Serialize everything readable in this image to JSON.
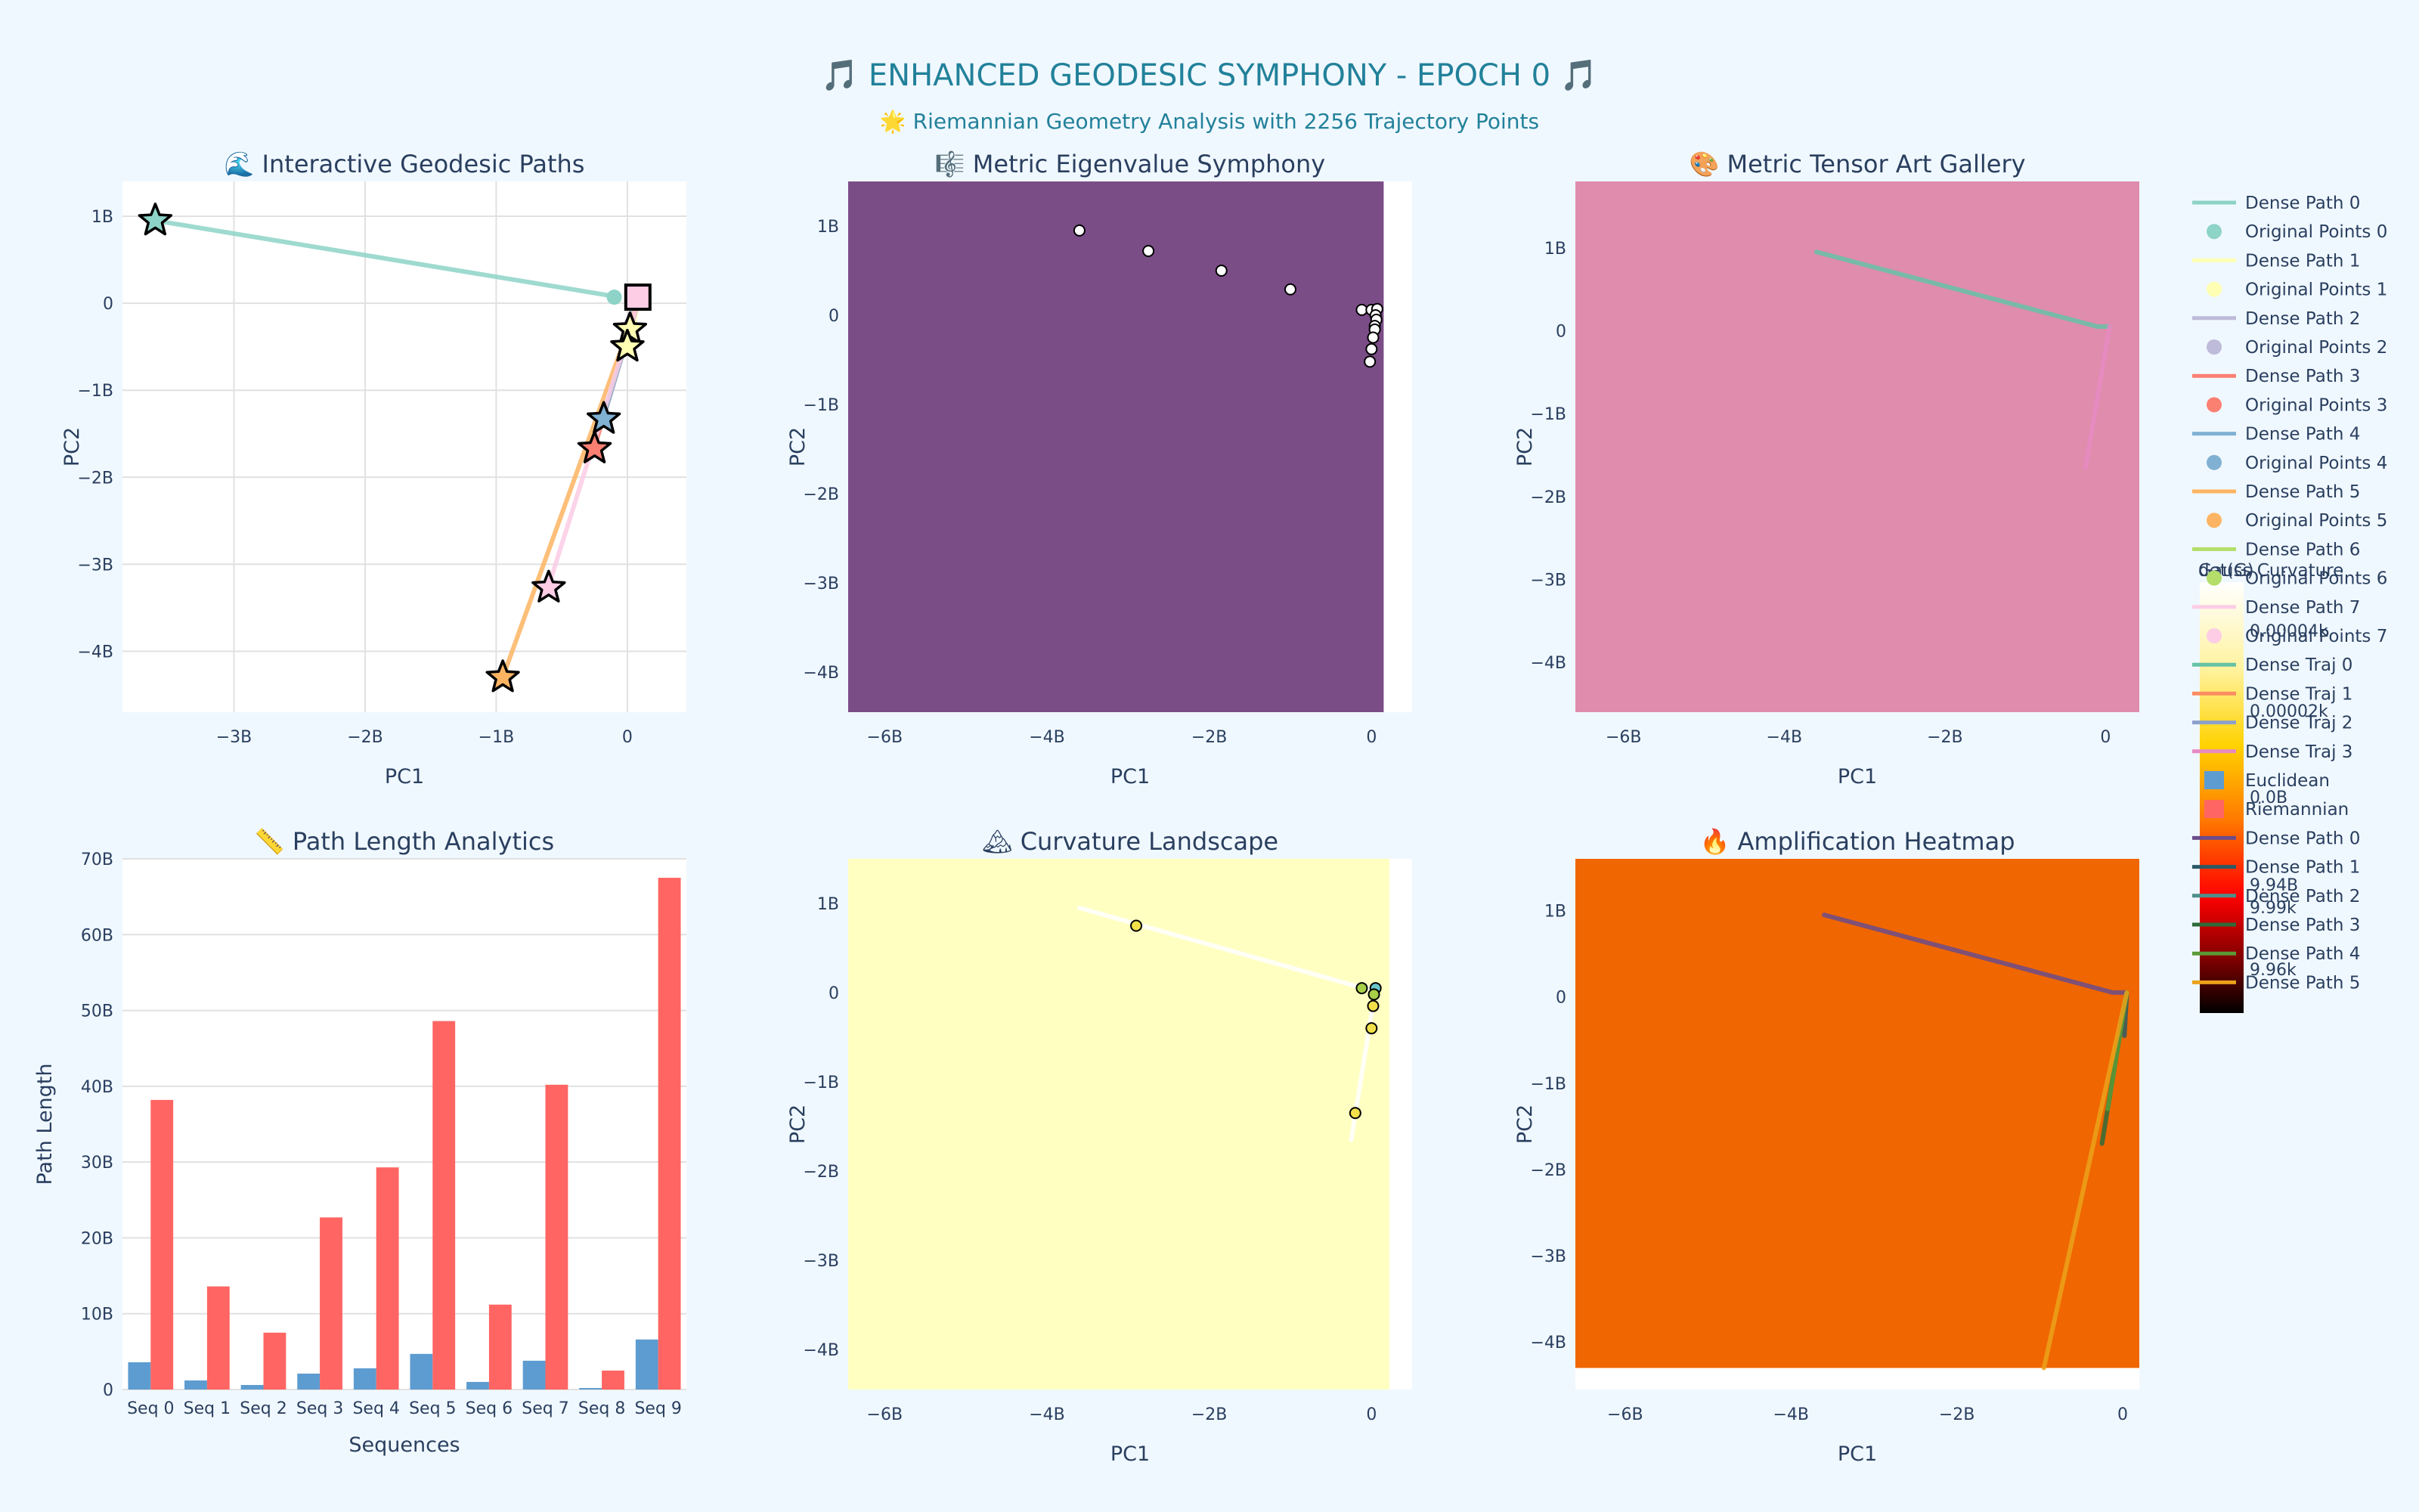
{
  "header": {
    "title": "🎵 ENHANCED GEODESIC SYMPHONY - EPOCH 0 🎵",
    "subtitle": "🌟 Riemannian Geometry Analysis with 2256 Trajectory Points"
  },
  "colors": {
    "page_bg": "#f0f8ff",
    "title": "#22819a",
    "axis_text": "#2a3f5f",
    "eigen_bg": "#7b4d87",
    "tensor_bg": "#df8cad",
    "curv_bg": "#ffffc2",
    "amp_bg": "#f06600",
    "bar_euclid": "#5d9cd0",
    "bar_riem": "#ff6562"
  },
  "chart_data": [
    {
      "id": "p1",
      "type": "line",
      "title": "🌊 Interactive Geodesic Paths",
      "xlabel": "PC1",
      "ylabel": "PC2",
      "xlim": [
        -3.85,
        0.45
      ],
      "ylim": [
        -4.7,
        1.4
      ],
      "xticks": [
        {
          "v": -3,
          "t": "−3B"
        },
        {
          "v": -2,
          "t": "−2B"
        },
        {
          "v": -1,
          "t": "−1B"
        },
        {
          "v": 0,
          "t": "0"
        }
      ],
      "yticks": [
        {
          "v": 1,
          "t": "1B"
        },
        {
          "v": 0,
          "t": "0"
        },
        {
          "v": -1,
          "t": "−1B"
        },
        {
          "v": -2,
          "t": "−2B"
        },
        {
          "v": -3,
          "t": "−3B"
        },
        {
          "v": -4,
          "t": "−4B"
        }
      ],
      "grid": true,
      "bg": "#ffffff",
      "series": [
        {
          "name": "Dense Path 0",
          "color": "#8dd3c7",
          "x": [
            -3.6,
            -0.1
          ],
          "y": [
            0.95,
            0.08
          ]
        },
        {
          "name": "Dense Path 1",
          "color": "#ffffb3",
          "x": [
            0.08,
            0.02
          ],
          "y": [
            0.0,
            -0.45
          ]
        },
        {
          "name": "Dense Path 2",
          "color": "#bebada",
          "x": [
            0.08,
            -0.02
          ],
          "y": [
            0.0,
            -0.25
          ]
        },
        {
          "name": "Dense Path 3",
          "color": "#fb8072",
          "x": [
            0.08,
            -0.25
          ],
          "y": [
            0.0,
            -1.65
          ]
        },
        {
          "name": "Dense Path 4",
          "color": "#80b1d3",
          "x": [
            0.08,
            -0.18
          ],
          "y": [
            0.0,
            -1.3
          ]
        },
        {
          "name": "Dense Path 5",
          "color": "#fdb462",
          "x": [
            0.08,
            -0.95
          ],
          "y": [
            0.0,
            -4.3
          ]
        },
        {
          "name": "Dense Path 7",
          "color": "#fccde5",
          "x": [
            0.08,
            -0.6
          ],
          "y": [
            0.0,
            -3.25
          ]
        }
      ],
      "points": [
        {
          "x": -0.1,
          "y": 0.07,
          "color": "#8dd3c7",
          "marker": "circle"
        },
        {
          "x": -3.6,
          "y": 0.95,
          "color": "#8dd3c7",
          "marker": "star"
        },
        {
          "x": 0.02,
          "y": -0.3,
          "color": "#ffffb3",
          "marker": "star"
        },
        {
          "x": 0.0,
          "y": -0.5,
          "color": "#ffffb3",
          "marker": "star"
        },
        {
          "x": -0.18,
          "y": -1.33,
          "color": "#80b1d3",
          "marker": "star"
        },
        {
          "x": -0.25,
          "y": -1.67,
          "color": "#fb8072",
          "marker": "star"
        },
        {
          "x": -0.6,
          "y": -3.27,
          "color": "#fccde5",
          "marker": "star"
        },
        {
          "x": -0.95,
          "y": -4.3,
          "color": "#fdb462",
          "marker": "star"
        },
        {
          "x": 0.08,
          "y": 0.07,
          "color": "#fccde5",
          "marker": "square"
        }
      ]
    },
    {
      "id": "p2",
      "type": "heatmap",
      "title": "🎼 Metric Eigenvalue Symphony",
      "xlabel": "PC1",
      "ylabel": "PC2",
      "xlim": [
        -6.45,
        0.5
      ],
      "ylim": [
        -4.45,
        1.5
      ],
      "heat_x": [
        -6.45,
        0.15
      ],
      "heat_y": [
        -4.45,
        1.5
      ],
      "xticks": [
        {
          "v": -6,
          "t": "−6B"
        },
        {
          "v": -4,
          "t": "−4B"
        },
        {
          "v": -2,
          "t": "−2B"
        },
        {
          "v": 0,
          "t": "0"
        }
      ],
      "yticks": [
        {
          "v": 1,
          "t": "1B"
        },
        {
          "v": 0,
          "t": "0"
        },
        {
          "v": -1,
          "t": "−1B"
        },
        {
          "v": -2,
          "t": "−2B"
        },
        {
          "v": -3,
          "t": "−3B"
        },
        {
          "v": -4,
          "t": "−4B"
        }
      ],
      "grid": false,
      "bg": "#ffffff",
      "heat_color": "#7b4d87",
      "series": [],
      "points": [
        {
          "x": -3.6,
          "y": 0.95,
          "color": "#ffffff",
          "marker": "circle"
        },
        {
          "x": -2.75,
          "y": 0.72,
          "color": "#ffffff",
          "marker": "circle"
        },
        {
          "x": -1.85,
          "y": 0.5,
          "color": "#ffffff",
          "marker": "circle"
        },
        {
          "x": -1.0,
          "y": 0.29,
          "color": "#ffffff",
          "marker": "circle"
        },
        {
          "x": -0.12,
          "y": 0.06,
          "color": "#ffffff",
          "marker": "circle"
        },
        {
          "x": 0.0,
          "y": 0.06,
          "color": "#ffffff",
          "marker": "circle"
        },
        {
          "x": 0.07,
          "y": 0.07,
          "color": "#ffffff",
          "marker": "circle"
        },
        {
          "x": 0.05,
          "y": 0.0,
          "color": "#ffffff",
          "marker": "circle"
        },
        {
          "x": 0.06,
          "y": -0.05,
          "color": "#ffffff",
          "marker": "circle"
        },
        {
          "x": 0.04,
          "y": -0.12,
          "color": "#ffffff",
          "marker": "circle"
        },
        {
          "x": 0.04,
          "y": -0.16,
          "color": "#ffffff",
          "marker": "circle"
        },
        {
          "x": 0.02,
          "y": -0.25,
          "color": "#ffffff",
          "marker": "circle"
        },
        {
          "x": 0.0,
          "y": -0.38,
          "color": "#ffffff",
          "marker": "circle"
        },
        {
          "x": -0.02,
          "y": -0.52,
          "color": "#ffffff",
          "marker": "circle"
        }
      ]
    },
    {
      "id": "p3",
      "type": "heatmap",
      "title": "🎨 Metric Tensor Art Gallery",
      "xlabel": "PC1",
      "ylabel": "PC2",
      "xlim": [
        -6.6,
        0.42
      ],
      "ylim": [
        -4.6,
        1.8
      ],
      "heat_x": [
        -6.6,
        0.42
      ],
      "heat_y": [
        -4.6,
        1.8
      ],
      "xticks": [
        {
          "v": -6,
          "t": "−6B"
        },
        {
          "v": -4,
          "t": "−4B"
        },
        {
          "v": -2,
          "t": "−2B"
        },
        {
          "v": 0,
          "t": "0"
        }
      ],
      "yticks": [
        {
          "v": 1,
          "t": "1B"
        },
        {
          "v": 0,
          "t": "0"
        },
        {
          "v": -1,
          "t": "−1B"
        },
        {
          "v": -2,
          "t": "−2B"
        },
        {
          "v": -3,
          "t": "−3B"
        },
        {
          "v": -4,
          "t": "−4B"
        }
      ],
      "grid": false,
      "bg": "#ffffff",
      "heat_color": "#df8cad",
      "series": [
        {
          "name": "Dense Traj 0",
          "color": "#66c2a5",
          "x": [
            -3.6,
            -0.1,
            0.05
          ],
          "y": [
            0.95,
            0.05,
            0.05
          ]
        },
        {
          "name": "Dense Traj 3",
          "color": "#e78ac3",
          "x": [
            0.05,
            -0.25
          ],
          "y": [
            0.05,
            -1.65
          ]
        }
      ],
      "points": []
    },
    {
      "id": "p4",
      "type": "bar",
      "title": "📏 Path Length Analytics",
      "xlabel": "Sequences",
      "ylabel": "Path Length",
      "ylim": [
        0,
        70
      ],
      "yticks": [
        {
          "v": 0,
          "t": "0"
        },
        {
          "v": 10,
          "t": "10B"
        },
        {
          "v": 20,
          "t": "20B"
        },
        {
          "v": 30,
          "t": "30B"
        },
        {
          "v": 40,
          "t": "40B"
        },
        {
          "v": 50,
          "t": "50B"
        },
        {
          "v": 60,
          "t": "60B"
        },
        {
          "v": 70,
          "t": "70B"
        }
      ],
      "grid": true,
      "bg": "#ffffff",
      "categories": [
        "Seq 0",
        "Seq 1",
        "Seq 2",
        "Seq 3",
        "Seq 4",
        "Seq 5",
        "Seq 6",
        "Seq 7",
        "Seq 8",
        "Seq 9"
      ],
      "series": [
        {
          "name": "Euclidean",
          "color": "#5d9cd0",
          "values": [
            3.6,
            1.2,
            0.6,
            2.1,
            2.8,
            4.7,
            1.0,
            3.8,
            0.2,
            6.6
          ]
        },
        {
          "name": "Riemannian",
          "color": "#ff6562",
          "values": [
            38.2,
            13.6,
            7.5,
            22.7,
            29.3,
            48.6,
            11.2,
            40.2,
            2.5,
            67.5
          ]
        }
      ]
    },
    {
      "id": "p5",
      "type": "heatmap",
      "title": "🏔 Curvature Landscape",
      "xlabel": "PC1",
      "ylabel": "PC2",
      "xlim": [
        -6.45,
        0.5
      ],
      "ylim": [
        -4.45,
        1.5
      ],
      "heat_x": [
        -6.45,
        0.22
      ],
      "heat_y": [
        -4.45,
        1.5
      ],
      "xticks": [
        {
          "v": -6,
          "t": "−6B"
        },
        {
          "v": -4,
          "t": "−4B"
        },
        {
          "v": -2,
          "t": "−2B"
        },
        {
          "v": 0,
          "t": "0"
        }
      ],
      "yticks": [
        {
          "v": 1,
          "t": "1B"
        },
        {
          "v": 0,
          "t": "0"
        },
        {
          "v": -1,
          "t": "−1B"
        },
        {
          "v": -2,
          "t": "−2B"
        },
        {
          "v": -3,
          "t": "−3B"
        },
        {
          "v": -4,
          "t": "−4B"
        }
      ],
      "grid": false,
      "bg": "#ffffff",
      "heat_color": "#ffffc2",
      "series": [
        {
          "name": "",
          "color": "#ffffff",
          "x": [
            -3.6,
            -0.1,
            0.05
          ],
          "y": [
            0.95,
            0.05,
            0.05
          ]
        },
        {
          "name": "",
          "color": "#ffffff",
          "x": [
            0.05,
            -0.25
          ],
          "y": [
            0.05,
            -1.65
          ]
        }
      ],
      "points": [
        {
          "x": -2.9,
          "y": 0.75,
          "color": "#f2e04a",
          "marker": "circle"
        },
        {
          "x": -0.12,
          "y": 0.05,
          "color": "#a8cf48",
          "marker": "circle"
        },
        {
          "x": 0.05,
          "y": 0.05,
          "color": "#6bc5cc",
          "marker": "circle"
        },
        {
          "x": 0.03,
          "y": -0.02,
          "color": "#a8cf48",
          "marker": "circle"
        },
        {
          "x": 0.02,
          "y": -0.15,
          "color": "#f2e04a",
          "marker": "circle"
        },
        {
          "x": 0.0,
          "y": -0.4,
          "color": "#f2e04a",
          "marker": "circle"
        },
        {
          "x": -0.2,
          "y": -1.35,
          "color": "#f2e04a",
          "marker": "circle"
        }
      ]
    },
    {
      "id": "p6",
      "type": "heatmap",
      "title": "🔥 Amplification Heatmap",
      "xlabel": "PC1",
      "ylabel": "PC2",
      "xlim": [
        -6.6,
        0.2
      ],
      "ylim": [
        -4.55,
        1.6
      ],
      "heat_x": [
        -6.6,
        0.2
      ],
      "heat_y": [
        -4.3,
        1.6
      ],
      "xticks": [
        {
          "v": -6,
          "t": "−6B"
        },
        {
          "v": -4,
          "t": "−4B"
        },
        {
          "v": -2,
          "t": "−2B"
        },
        {
          "v": 0,
          "t": "0"
        }
      ],
      "yticks": [
        {
          "v": 1,
          "t": "1B"
        },
        {
          "v": 0,
          "t": "0"
        },
        {
          "v": -1,
          "t": "−1B"
        },
        {
          "v": -2,
          "t": "−2B"
        },
        {
          "v": -3,
          "t": "−3B"
        },
        {
          "v": -4,
          "t": "−4B"
        }
      ],
      "grid": false,
      "bg": "#ffffff",
      "heat_color": "#f06600",
      "series": [
        {
          "name": "Dense Path 0",
          "color": "#6b4c8a",
          "x": [
            -3.6,
            -0.12,
            0.05
          ],
          "y": [
            0.95,
            0.05,
            0.05
          ]
        },
        {
          "name": "Dense Path 1",
          "color": "#2b5a64",
          "x": [
            0.05,
            0.02
          ],
          "y": [
            0.05,
            -0.45
          ]
        },
        {
          "name": "Dense Path 2",
          "color": "#4f8f89",
          "x": [
            0.05,
            -0.02
          ],
          "y": [
            0.05,
            -0.3
          ]
        },
        {
          "name": "Dense Path 3",
          "color": "#2f6b3a",
          "x": [
            0.05,
            -0.25
          ],
          "y": [
            0.05,
            -1.7
          ]
        },
        {
          "name": "Dense Path 4",
          "color": "#5b9a37",
          "x": [
            0.05,
            -0.18
          ],
          "y": [
            0.05,
            -1.3
          ]
        },
        {
          "name": "Dense Path 5",
          "color": "#eba21a",
          "x": [
            0.05,
            -0.95
          ],
          "y": [
            0.05,
            -4.3
          ]
        }
      ],
      "points": []
    }
  ],
  "legend": {
    "items": [
      {
        "label": "Dense Path 0",
        "color": "#8dd3c7",
        "kind": "line"
      },
      {
        "label": "Original Points 0",
        "color": "#8dd3c7",
        "kind": "dot"
      },
      {
        "label": "Dense Path 1",
        "color": "#ffffb3",
        "kind": "line"
      },
      {
        "label": "Original Points 1",
        "color": "#ffffb3",
        "kind": "dot"
      },
      {
        "label": "Dense Path 2",
        "color": "#bebada",
        "kind": "line"
      },
      {
        "label": "Original Points 2",
        "color": "#bebada",
        "kind": "dot"
      },
      {
        "label": "Dense Path 3",
        "color": "#fb8072",
        "kind": "line"
      },
      {
        "label": "Original Points 3",
        "color": "#fb8072",
        "kind": "dot"
      },
      {
        "label": "Dense Path 4",
        "color": "#80b1d3",
        "kind": "line"
      },
      {
        "label": "Original Points 4",
        "color": "#80b1d3",
        "kind": "dot"
      },
      {
        "label": "Dense Path 5",
        "color": "#fdb462",
        "kind": "line"
      },
      {
        "label": "Original Points 5",
        "color": "#fdb462",
        "kind": "dot"
      },
      {
        "label": "Dense Path 6",
        "color": "#b3de69",
        "kind": "line"
      },
      {
        "label": "Original Points 6",
        "color": "#b3de69",
        "kind": "dot"
      },
      {
        "label": "Dense Path 7",
        "color": "#fccde5",
        "kind": "line"
      },
      {
        "label": "Original Points 7",
        "color": "#fccde5",
        "kind": "dot"
      },
      {
        "label": "Dense Traj 0",
        "color": "#66c2a5",
        "kind": "line"
      },
      {
        "label": "Dense Traj 1",
        "color": "#fc8d62",
        "kind": "line"
      },
      {
        "label": "Dense Traj 2",
        "color": "#8da0cb",
        "kind": "line"
      },
      {
        "label": "Dense Traj 3",
        "color": "#e78ac3",
        "kind": "line"
      },
      {
        "label": "Euclidean",
        "color": "#5d9cd0",
        "kind": "bar"
      },
      {
        "label": "Riemannian",
        "color": "#ff6562",
        "kind": "bar"
      },
      {
        "label": "Dense Path 0",
        "color": "#6b4c8a",
        "kind": "line"
      },
      {
        "label": "Dense Path 1",
        "color": "#2b5a64",
        "kind": "line"
      },
      {
        "label": "Dense Path 2",
        "color": "#4f8f89",
        "kind": "line"
      },
      {
        "label": "Dense Path 3",
        "color": "#2f6b3a",
        "kind": "line"
      },
      {
        "label": "Dense Path 4",
        "color": "#5b9a37",
        "kind": "line"
      },
      {
        "label": "Dense Path 5",
        "color": "#eba21a",
        "kind": "line"
      }
    ]
  },
  "colorbars": {
    "title_a": "Gauss Curvature",
    "title_b": "det(G)",
    "labels": [
      "0.00004k",
      "0.00002k",
      "0.0B",
      "9.94B",
      "9.99k",
      "9.96k"
    ]
  }
}
